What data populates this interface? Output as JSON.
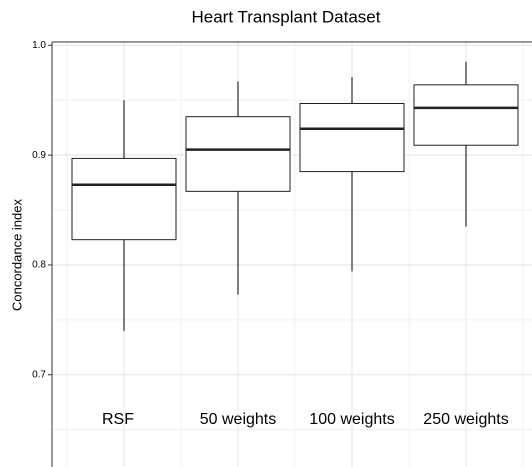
{
  "chart_data": {
    "type": "box",
    "title": "Heart Transplant Dataset",
    "ylabel": "Concordance index",
    "categories": [
      "RSF",
      "50 weights",
      "100 weights",
      "250 weights"
    ],
    "boxes": [
      {
        "min": 0.74,
        "q1": 0.823,
        "median": 0.873,
        "q3": 0.897,
        "max": 0.95
      },
      {
        "min": 0.773,
        "q1": 0.867,
        "median": 0.905,
        "q3": 0.935,
        "max": 0.967
      },
      {
        "min": 0.794,
        "q1": 0.885,
        "median": 0.924,
        "q3": 0.947,
        "max": 0.971
      },
      {
        "min": 0.835,
        "q1": 0.909,
        "median": 0.943,
        "q3": 0.964,
        "max": 0.985
      }
    ],
    "ylim": [
      0.616,
      1.003
    ],
    "yticks": [
      0.7,
      0.8,
      0.9,
      {
        "value": 1,
        "label": "1.0"
      }
    ],
    "minor_yticks": [
      0.65,
      0.75,
      0.85,
      0.95
    ],
    "grid": true
  }
}
